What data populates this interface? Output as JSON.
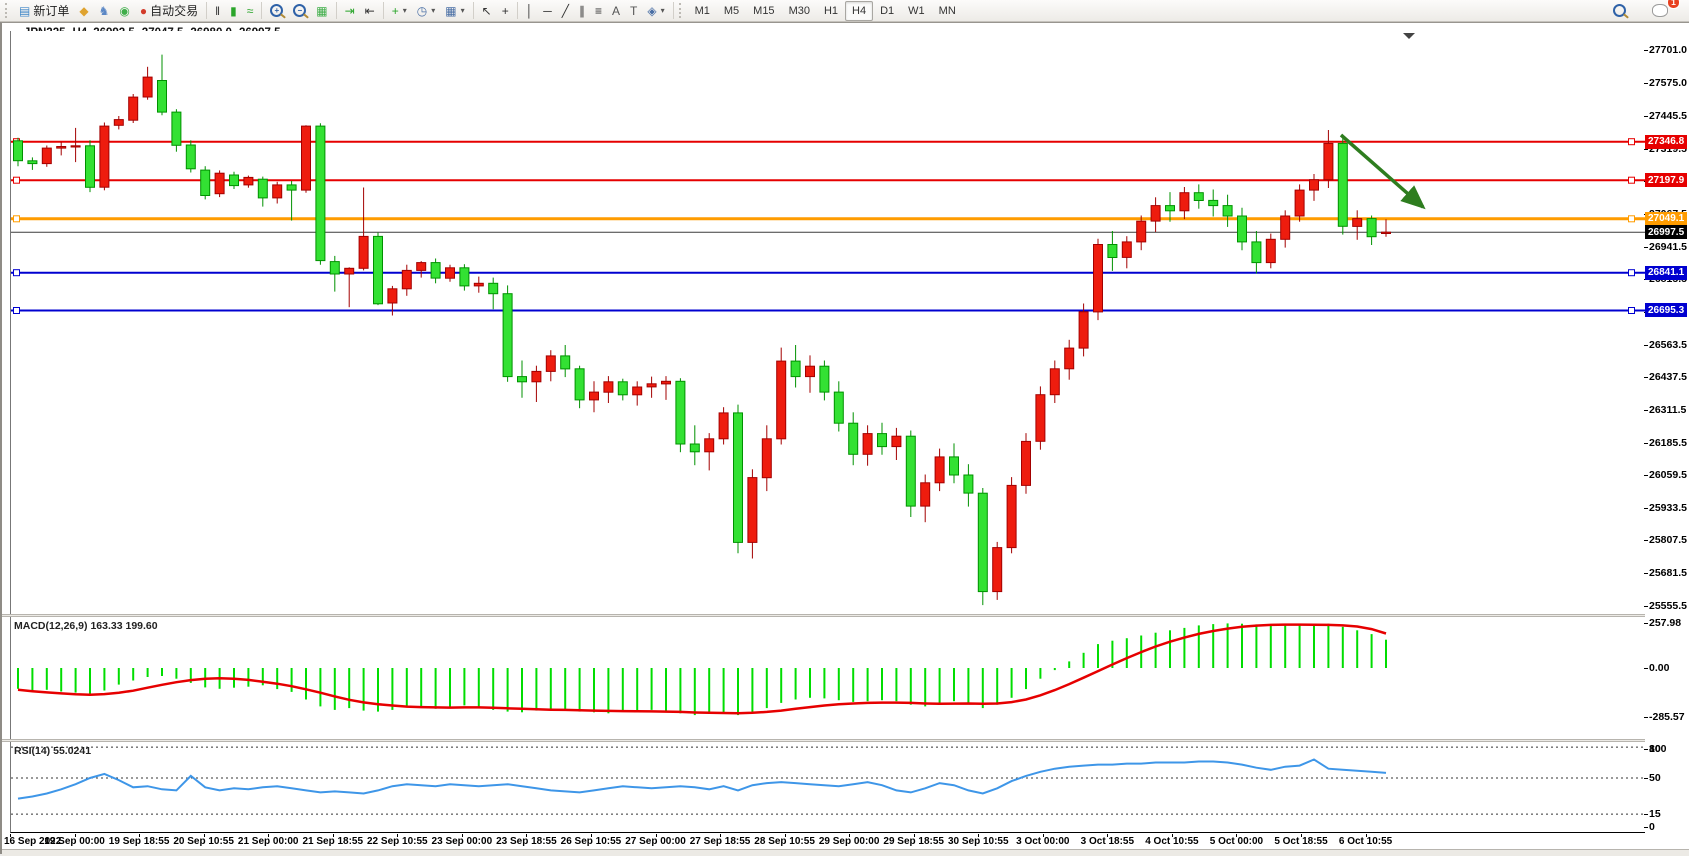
{
  "toolbar": {
    "buttons": [
      {
        "name": "new-order-button",
        "glyph": "▤",
        "color": "#3f87c8",
        "label": "新订单"
      },
      {
        "name": "metaeditor-button",
        "glyph": "◆",
        "color": "#dfa32f"
      },
      {
        "name": "community-button",
        "glyph": "♞",
        "color": "#5b87c5"
      },
      {
        "name": "signals-button",
        "glyph": "◉",
        "color": "#3fae49"
      },
      {
        "name": "autotrading-button",
        "glyph": "●",
        "color": "#d23b2a",
        "label": "自动交易"
      },
      {
        "sep": true
      },
      {
        "name": "bar-chart-button",
        "glyph": "‖",
        "color": "#333333"
      },
      {
        "name": "candlestick-chart-button",
        "glyph": "▮",
        "color": "#2aa52a"
      },
      {
        "name": "line-chart-button",
        "glyph": "≈",
        "color": "#2aa52a"
      },
      {
        "sep": true
      },
      {
        "name": "zoom-in-button",
        "mag": "+"
      },
      {
        "name": "zoom-out-button",
        "mag": "−"
      },
      {
        "name": "tile-windows-button",
        "glyph": "▦",
        "color": "#3fae49"
      },
      {
        "sep": true
      },
      {
        "name": "auto-scroll-button",
        "glyph": "⇥",
        "color": "#2aa52a"
      },
      {
        "name": "chart-shift-button",
        "glyph": "⇤",
        "color": "#333333"
      },
      {
        "sep": true
      },
      {
        "name": "indicators-button",
        "glyph": "+",
        "color": "#2aa52a",
        "dropdown": true
      },
      {
        "name": "periods-button",
        "glyph": "◷",
        "color": "#4a6fa5",
        "dropdown": true
      },
      {
        "name": "templates-button",
        "glyph": "▦",
        "color": "#4a6fa5",
        "dropdown": true
      },
      {
        "sep": true
      },
      {
        "name": "cursor-button",
        "glyph": "↖",
        "color": "#333333"
      },
      {
        "name": "crosshair-button",
        "glyph": "+",
        "color": "#333333"
      },
      {
        "sep": true
      },
      {
        "name": "vertical-line-button",
        "glyph": "│",
        "color": "#333333"
      },
      {
        "name": "horizontal-line-button",
        "glyph": "─",
        "color": "#333333"
      },
      {
        "name": "trendline-button",
        "glyph": "╱",
        "color": "#333333"
      },
      {
        "name": "channel-button",
        "glyph": "∥",
        "color": "#333333"
      },
      {
        "name": "fibonacci-button",
        "glyph": "≡",
        "color": "#333333"
      },
      {
        "name": "text-button",
        "glyph": "A",
        "color": "#555555"
      },
      {
        "name": "text-label-button",
        "glyph": "T",
        "color": "#555555"
      },
      {
        "name": "arrows-button",
        "glyph": "◈",
        "color": "#4a6fa5",
        "dropdown": true
      },
      {
        "sep": true
      }
    ],
    "timeframes": {
      "items": [
        "M1",
        "M5",
        "M15",
        "M30",
        "H1",
        "H4",
        "D1",
        "W1",
        "MN"
      ],
      "active": "H4"
    },
    "search_icon": "search-icon",
    "notification_count": "1"
  },
  "window": {
    "title_caret": "▼",
    "symbol_period": "JPN225-,H4",
    "ohlc": {
      "open": "26992.5",
      "high": "27047.5",
      "low": "26980.0",
      "close": "26997.5"
    }
  },
  "chart_data": {
    "type": "candlestick",
    "symbol": "JPN225-",
    "period": "H4",
    "price_axis_ticks": [
      27701.0,
      27575.0,
      27445.5,
      27319.5,
      27193.5,
      27067.5,
      26941.5,
      26815.5,
      26689.5,
      26563.5,
      26437.5,
      26311.5,
      26185.5,
      26059.5,
      25933.5,
      25807.5,
      25681.5,
      25555.5
    ],
    "x_labels": [
      "16 Sep 2022",
      "19 Sep 00:00",
      "19 Sep 18:55",
      "20 Sep 10:55",
      "21 Sep 00:00",
      "21 Sep 18:55",
      "22 Sep 10:55",
      "23 Sep 00:00",
      "23 Sep 18:55",
      "26 Sep 10:55",
      "27 Sep 00:00",
      "27 Sep 18:55",
      "28 Sep 10:55",
      "29 Sep 00:00",
      "29 Sep 18:55",
      "30 Sep 10:55",
      "3 Oct 00:00",
      "3 Oct 18:55",
      "4 Oct 10:55",
      "5 Oct 00:00",
      "5 Oct 18:55",
      "6 Oct 10:55"
    ],
    "hlines": [
      {
        "value": 27346.8,
        "label": "27346.8",
        "color": "#e60000",
        "width": 2
      },
      {
        "value": 27197.9,
        "label": "27197.9",
        "color": "#e60000",
        "width": 2
      },
      {
        "value": 27049.1,
        "label": "27049.1",
        "color": "#ff9c00",
        "width": 3
      },
      {
        "value": 26841.1,
        "label": "26841.1",
        "color": "#0000d0",
        "width": 2
      },
      {
        "value": 26695.3,
        "label": "26695.3",
        "color": "#0000d0",
        "width": 2
      }
    ],
    "current_price": {
      "value": 26997.5,
      "label": "26997.5",
      "color": "#000000"
    },
    "candles": [
      [
        27350,
        27362,
        27252,
        27273
      ],
      [
        27273,
        27286,
        27238,
        27262
      ],
      [
        27262,
        27332,
        27250,
        27322
      ],
      [
        27322,
        27346,
        27294,
        27328
      ],
      [
        27328,
        27400,
        27268,
        27331
      ],
      [
        27331,
        27352,
        27152,
        27171
      ],
      [
        27171,
        27421,
        27159,
        27407
      ],
      [
        27410,
        27446,
        27394,
        27432
      ],
      [
        27430,
        27531,
        27419,
        27519
      ],
      [
        27519,
        27636,
        27509,
        27596
      ],
      [
        27583,
        27683,
        27449,
        27461
      ],
      [
        27461,
        27472,
        27308,
        27333
      ],
      [
        27334,
        27352,
        27228,
        27242
      ],
      [
        27237,
        27252,
        27124,
        27139
      ],
      [
        27146,
        27236,
        27133,
        27225
      ],
      [
        27218,
        27231,
        27164,
        27177
      ],
      [
        27180,
        27216,
        27169,
        27209
      ],
      [
        27202,
        27212,
        27096,
        27130
      ],
      [
        27130,
        27192,
        27108,
        27180
      ],
      [
        27180,
        27195,
        27042,
        27160
      ],
      [
        27160,
        27410,
        27150,
        27407
      ],
      [
        27407,
        27418,
        26872,
        26888
      ],
      [
        26884,
        26906,
        26768,
        26836
      ],
      [
        26836,
        26862,
        26708,
        26858
      ],
      [
        26858,
        27170,
        26850,
        26981
      ],
      [
        26981,
        26996,
        26716,
        26721
      ],
      [
        26724,
        26790,
        26676,
        26779
      ],
      [
        26779,
        26872,
        26752,
        26850
      ],
      [
        26850,
        26886,
        26822,
        26880
      ],
      [
        26880,
        26896,
        26800,
        26820
      ],
      [
        26820,
        26872,
        26806,
        26860
      ],
      [
        26860,
        26874,
        26772,
        26790
      ],
      [
        26790,
        26826,
        26764,
        26800
      ],
      [
        26800,
        26822,
        26700,
        26760
      ],
      [
        26760,
        26792,
        26420,
        26440
      ],
      [
        26440,
        26502,
        26358,
        26420
      ],
      [
        26420,
        26482,
        26342,
        26460
      ],
      [
        26460,
        26542,
        26422,
        26520
      ],
      [
        26520,
        26562,
        26438,
        26470
      ],
      [
        26470,
        26482,
        26318,
        26350
      ],
      [
        26350,
        26422,
        26302,
        26380
      ],
      [
        26380,
        26442,
        26338,
        26420
      ],
      [
        26420,
        26432,
        26348,
        26370
      ],
      [
        26370,
        26422,
        26328,
        26400
      ],
      [
        26400,
        26440,
        26358,
        26412
      ],
      [
        26412,
        26442,
        26350,
        26422
      ],
      [
        26422,
        26434,
        26148,
        26180
      ],
      [
        26180,
        26252,
        26098,
        26150
      ],
      [
        26150,
        26222,
        26078,
        26200
      ],
      [
        26200,
        26322,
        26178,
        26300
      ],
      [
        26300,
        26332,
        25758,
        25800
      ],
      [
        25800,
        26082,
        25738,
        26050
      ],
      [
        26050,
        26252,
        25998,
        26200
      ],
      [
        26200,
        26552,
        26178,
        26500
      ],
      [
        26500,
        26562,
        26398,
        26440
      ],
      [
        26440,
        26522,
        26378,
        26480
      ],
      [
        26480,
        26502,
        26348,
        26380
      ],
      [
        26380,
        26422,
        26228,
        26260
      ],
      [
        26260,
        26302,
        26098,
        26140
      ],
      [
        26140,
        26252,
        26096,
        26220
      ],
      [
        26220,
        26262,
        26138,
        26170
      ],
      [
        26170,
        26242,
        26118,
        26210
      ],
      [
        26210,
        26232,
        25898,
        25940
      ],
      [
        25940,
        26062,
        25878,
        26030
      ],
      [
        26030,
        26162,
        25998,
        26130
      ],
      [
        26130,
        26182,
        26028,
        26060
      ],
      [
        26060,
        26102,
        25938,
        25990
      ],
      [
        25990,
        26010,
        25558,
        25610
      ],
      [
        25610,
        25802,
        25578,
        25780
      ],
      [
        25780,
        26052,
        25758,
        26020
      ],
      [
        26020,
        26222,
        25988,
        26190
      ],
      [
        26190,
        26402,
        26158,
        26370
      ],
      [
        26370,
        26502,
        26338,
        26470
      ],
      [
        26470,
        26582,
        26428,
        26550
      ],
      [
        26550,
        26722,
        26518,
        26690
      ],
      [
        26690,
        26972,
        26658,
        26950
      ],
      [
        26950,
        27002,
        26848,
        26900
      ],
      [
        26900,
        26982,
        26858,
        26960
      ],
      [
        26960,
        27062,
        26928,
        27040
      ],
      [
        27040,
        27132,
        26998,
        27100
      ],
      [
        27100,
        27152,
        27038,
        27080
      ],
      [
        27080,
        27172,
        27048,
        27150
      ],
      [
        27150,
        27182,
        27088,
        27120
      ],
      [
        27120,
        27162,
        27058,
        27100
      ],
      [
        27100,
        27142,
        27018,
        27060
      ],
      [
        27060,
        27092,
        26928,
        26960
      ],
      [
        26960,
        27002,
        26838,
        26880
      ],
      [
        26880,
        26992,
        26858,
        26970
      ],
      [
        26970,
        27082,
        26938,
        27060
      ],
      [
        27060,
        27182,
        27038,
        27160
      ],
      [
        27160,
        27222,
        27118,
        27200
      ],
      [
        27200,
        27392,
        27168,
        27340
      ],
      [
        27340,
        27362,
        26988,
        27020
      ],
      [
        27020,
        27082,
        26968,
        27050
      ],
      [
        27050,
        27062,
        26948,
        26980
      ],
      [
        26992.5,
        27047.5,
        26980.0,
        26997.5
      ]
    ],
    "macd": {
      "label": "MACD(12,26,9)",
      "value_main": "163.33",
      "value_signal": "199.60",
      "axis_labels": [
        "257.98",
        "0.00",
        "-285.57"
      ],
      "axis_values": [
        257.98,
        0,
        -285.57
      ],
      "histogram": [
        -120,
        -132,
        -126,
        -136,
        -142,
        -152,
        -130,
        -96,
        -72,
        -52,
        -46,
        -62,
        -86,
        -112,
        -120,
        -114,
        -108,
        -100,
        -122,
        -138,
        -182,
        -222,
        -242,
        -232,
        -246,
        -252,
        -242,
        -226,
        -230,
        -236,
        -226,
        -216,
        -226,
        -242,
        -252,
        -256,
        -246,
        -236,
        -242,
        -252,
        -256,
        -262,
        -252,
        -246,
        -242,
        -252,
        -262,
        -272,
        -266,
        -256,
        -272,
        -262,
        -232,
        -202,
        -182,
        -172,
        -176,
        -186,
        -196,
        -192,
        -186,
        -192,
        -212,
        -222,
        -202,
        -192,
        -202,
        -232,
        -212,
        -172,
        -122,
        -62,
        -12,
        38,
        88,
        138,
        158,
        172,
        188,
        204,
        218,
        232,
        246,
        254,
        258,
        256,
        252,
        248,
        246,
        248,
        252,
        256,
        238,
        218,
        196,
        163.33
      ],
      "signal": [
        -126,
        -134,
        -141,
        -147,
        -152,
        -155,
        -151,
        -143,
        -131,
        -114,
        -97,
        -82,
        -70,
        -62,
        -59,
        -62,
        -69,
        -79,
        -91,
        -105,
        -123,
        -143,
        -164,
        -184,
        -199,
        -209,
        -217,
        -223,
        -226,
        -228,
        -229,
        -228,
        -228,
        -230,
        -233,
        -236,
        -239,
        -241,
        -242,
        -244,
        -246,
        -248,
        -249,
        -250,
        -251,
        -252,
        -254,
        -257,
        -259,
        -260,
        -261,
        -259,
        -254,
        -246,
        -236,
        -226,
        -217,
        -210,
        -205,
        -202,
        -200,
        -200,
        -202,
        -205,
        -207,
        -206,
        -205,
        -207,
        -205,
        -197,
        -182,
        -158,
        -128,
        -93,
        -56,
        -18,
        20,
        57,
        92,
        124,
        152,
        176,
        197,
        214,
        228,
        238,
        245,
        249,
        251,
        251,
        250,
        249,
        246,
        240,
        225,
        199.6
      ]
    },
    "rsi": {
      "label": "RSI(14)",
      "value": "55.0241",
      "axis_labels": [
        "100",
        "80",
        "50",
        "15",
        "0"
      ],
      "levels": [
        80,
        50,
        15
      ],
      "values": [
        30,
        32,
        35,
        39,
        44,
        50,
        54,
        48,
        41,
        42,
        39,
        38,
        52,
        41,
        38,
        40,
        39,
        41,
        42,
        40,
        38,
        36,
        37,
        36,
        35,
        38,
        42,
        44,
        43,
        42,
        44,
        43,
        42,
        43,
        44,
        42,
        40,
        38,
        37,
        36,
        38,
        40,
        42,
        41,
        40,
        41,
        42,
        41,
        39,
        42,
        38,
        43,
        45,
        46,
        45,
        44,
        43,
        42,
        44,
        46,
        43,
        38,
        36,
        40,
        45,
        43,
        38,
        35,
        40,
        47,
        52,
        56,
        59,
        61,
        62,
        63,
        63,
        64,
        64,
        65,
        65,
        65,
        66,
        66,
        65,
        63,
        60,
        58,
        61,
        62,
        68,
        59,
        58,
        57,
        56,
        55
      ]
    },
    "colors": {
      "up": "#ee1c0e",
      "up_border": "#a30000",
      "down": "#33e133",
      "down_border": "#009100",
      "macd_hist": "#00dd00",
      "macd_signal": "#e60000",
      "rsi": "#3e96e8",
      "current_line": "#3c3c3c"
    },
    "annotation_arrow": {
      "color": "#2e7d1f"
    }
  }
}
